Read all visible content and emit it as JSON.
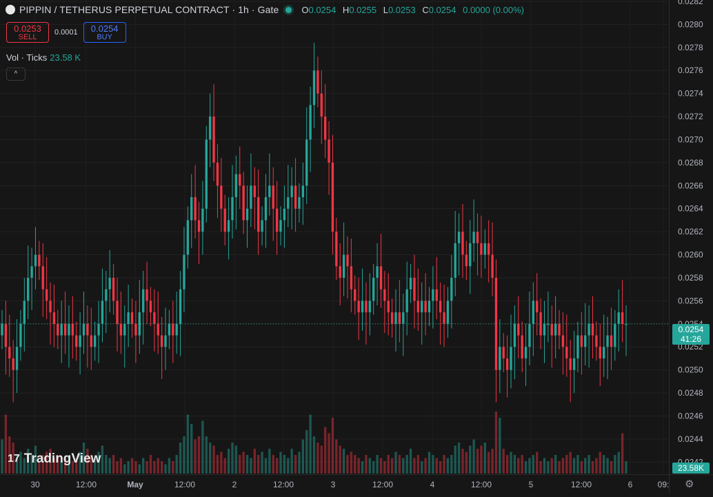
{
  "header": {
    "title": "PIPPIN / TETHERUS PERPETUAL CONTRACT · 1h · Gate",
    "ohlc": [
      {
        "k": "O",
        "v": "0.0254"
      },
      {
        "k": "H",
        "v": "0.0255"
      },
      {
        "k": "L",
        "v": "0.0253"
      },
      {
        "k": "C",
        "v": "0.0254"
      }
    ],
    "change": "0.0000 (0.00%)"
  },
  "trade": {
    "sell_price": "0.0253",
    "sell_label": "SELL",
    "spread": "0.0001",
    "buy_price": "0.0254",
    "buy_label": "BUY"
  },
  "volume": {
    "label": "Vol · Ticks",
    "value": "23.58 K",
    "tag": "23.58K"
  },
  "collapse_icon": "^",
  "brand": {
    "logo_mark": "17",
    "name": "TradingView"
  },
  "current": {
    "price": "0.0254",
    "countdown": "41:26"
  },
  "colors": {
    "up": "#26a69a",
    "down": "#f23645",
    "background": "#161616"
  },
  "chart_data": {
    "type": "candlestick",
    "ylim": [
      0.0241,
      0.0282
    ],
    "y_ticks": [
      "0.0282",
      "0.0280",
      "0.0278",
      "0.0276",
      "0.0274",
      "0.0272",
      "0.0270",
      "0.0268",
      "0.0266",
      "0.0264",
      "0.0262",
      "0.0260",
      "0.0258",
      "0.0256",
      "0.0254",
      "0.0252",
      "0.0250",
      "0.0248",
      "0.0246",
      "0.0244",
      "0.0242"
    ],
    "x_ticks": [
      "30",
      "12:00",
      "May",
      "12:00",
      "2",
      "12:00",
      "3",
      "12:00",
      "4",
      "12:00",
      "5",
      "12:00",
      "6",
      "09:"
    ],
    "close": [
      0.0254,
      0.0252,
      0.0251,
      0.025,
      0.0252,
      0.0254,
      0.0256,
      0.0258,
      0.0259,
      0.026,
      0.0259,
      0.0257,
      0.0256,
      0.0255,
      0.0254,
      0.0253,
      0.0254,
      0.0253,
      0.0254,
      0.0253,
      0.0252,
      0.0253,
      0.0254,
      0.0253,
      0.0252,
      0.0253,
      0.0254,
      0.0256,
      0.0257,
      0.0258,
      0.0256,
      0.0254,
      0.0253,
      0.0254,
      0.0255,
      0.0254,
      0.0253,
      0.0255,
      0.0257,
      0.0256,
      0.0255,
      0.0254,
      0.0253,
      0.0252,
      0.0253,
      0.0254,
      0.0253,
      0.0254,
      0.0257,
      0.026,
      0.0263,
      0.0265,
      0.0263,
      0.0262,
      0.0264,
      0.027,
      0.0272,
      0.0268,
      0.0266,
      0.0264,
      0.0262,
      0.0263,
      0.0265,
      0.0267,
      0.0266,
      0.0263,
      0.0264,
      0.0266,
      0.0265,
      0.0262,
      0.0263,
      0.0265,
      0.0266,
      0.0264,
      0.0262,
      0.0263,
      0.0264,
      0.0265,
      0.0266,
      0.0264,
      0.0265,
      0.0266,
      0.027,
      0.0273,
      0.0276,
      0.0274,
      0.0272,
      0.027,
      0.0268,
      0.0262,
      0.0259,
      0.0258,
      0.026,
      0.0259,
      0.0257,
      0.0256,
      0.0255,
      0.0256,
      0.0255,
      0.0256,
      0.0258,
      0.0259,
      0.0257,
      0.0256,
      0.0255,
      0.0254,
      0.0255,
      0.0254,
      0.0255,
      0.0257,
      0.0258,
      0.0256,
      0.0255,
      0.0256,
      0.0255,
      0.0256,
      0.0257,
      0.0256,
      0.0255,
      0.0254,
      0.0256,
      0.0258,
      0.0261,
      0.0262,
      0.026,
      0.0259,
      0.0261,
      0.0262,
      0.0261,
      0.026,
      0.0261,
      0.026,
      0.0258,
      0.025,
      0.0252,
      0.0251,
      0.025,
      0.0252,
      0.0254,
      0.0253,
      0.0251,
      0.0252,
      0.0254,
      0.0256,
      0.0255,
      0.0253,
      0.0254,
      0.0254,
      0.0253,
      0.0254,
      0.0253,
      0.0252,
      0.0251,
      0.025,
      0.0251,
      0.0253,
      0.0252,
      0.0253,
      0.0254,
      0.0253,
      0.0252,
      0.0251,
      0.0252,
      0.0253,
      0.0252,
      0.0254,
      0.0255,
      0.0254,
      0.0254
    ],
    "volume_rel": [
      0.55,
      0.95,
      0.6,
      0.5,
      0.3,
      0.35,
      0.25,
      0.4,
      0.3,
      0.45,
      0.2,
      0.3,
      0.35,
      0.4,
      0.25,
      0.3,
      0.2,
      0.25,
      0.3,
      0.2,
      0.25,
      0.35,
      0.5,
      0.4,
      0.3,
      0.25,
      0.35,
      0.45,
      0.3,
      0.25,
      0.3,
      0.2,
      0.25,
      0.15,
      0.2,
      0.25,
      0.2,
      0.15,
      0.25,
      0.2,
      0.3,
      0.2,
      0.25,
      0.2,
      0.15,
      0.25,
      0.2,
      0.3,
      0.5,
      0.6,
      0.95,
      0.8,
      0.55,
      0.6,
      0.85,
      0.6,
      0.5,
      0.45,
      0.3,
      0.35,
      0.25,
      0.4,
      0.5,
      0.45,
      0.3,
      0.35,
      0.3,
      0.25,
      0.4,
      0.3,
      0.35,
      0.25,
      0.4,
      0.3,
      0.25,
      0.35,
      0.3,
      0.25,
      0.4,
      0.3,
      0.35,
      0.55,
      0.7,
      0.95,
      0.6,
      0.5,
      0.45,
      0.75,
      0.65,
      0.9,
      0.55,
      0.45,
      0.4,
      0.3,
      0.35,
      0.3,
      0.25,
      0.2,
      0.3,
      0.25,
      0.2,
      0.3,
      0.25,
      0.2,
      0.3,
      0.25,
      0.35,
      0.3,
      0.25,
      0.3,
      0.4,
      0.25,
      0.3,
      0.2,
      0.25,
      0.35,
      0.3,
      0.25,
      0.2,
      0.3,
      0.25,
      0.3,
      0.45,
      0.5,
      0.4,
      0.35,
      0.45,
      0.55,
      0.4,
      0.45,
      0.5,
      0.35,
      0.4,
      1.0,
      0.9,
      0.4,
      0.3,
      0.35,
      0.3,
      0.25,
      0.3,
      0.2,
      0.25,
      0.3,
      0.35,
      0.2,
      0.25,
      0.2,
      0.25,
      0.3,
      0.2,
      0.25,
      0.3,
      0.35,
      0.25,
      0.3,
      0.2,
      0.25,
      0.3,
      0.2,
      0.25,
      0.35,
      0.3,
      0.25,
      0.2,
      0.3,
      0.35,
      0.65,
      0.2
    ]
  }
}
